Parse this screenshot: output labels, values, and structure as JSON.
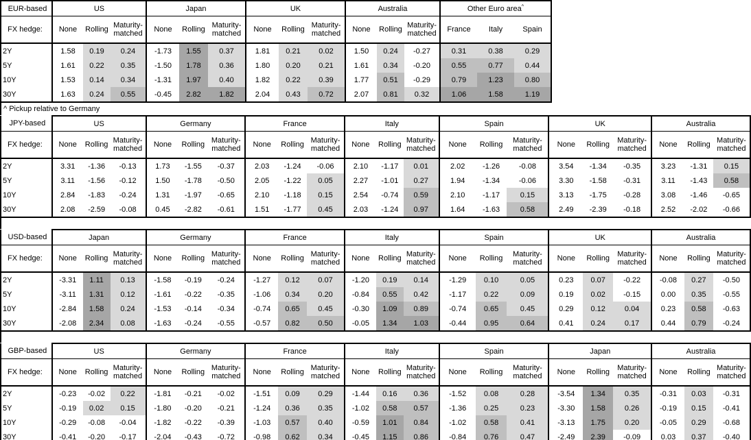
{
  "footnote": "^ Pickup relative to Germany",
  "colors": {
    "shade_light": "#d9d9d9",
    "shade_mid": "#bfbfbf",
    "shade_dark": "#a6a6a6",
    "unshaded": "#ffffff",
    "border": "#000000",
    "text": "#000000"
  },
  "tables": [
    {
      "id": "eur",
      "base_label": "EUR-based",
      "fx_hedge_label": "FX hedge:",
      "tenors": [
        "2Y",
        "5Y",
        "10Y",
        "30Y"
      ],
      "groups": [
        {
          "name": "US",
          "subcols": [
            "None",
            "Rolling",
            "Maturity-matched"
          ],
          "values": [
            [
              "1.58",
              "0.19",
              "0.24"
            ],
            [
              "1.61",
              "0.22",
              "0.35"
            ],
            [
              "1.53",
              "0.14",
              "0.34"
            ],
            [
              "1.63",
              "0.24",
              "0.55"
            ]
          ]
        },
        {
          "name": "Japan",
          "subcols": [
            "None",
            "Rolling",
            "Maturity-matched"
          ],
          "values": [
            [
              "-1.73",
              "1.55",
              "0.37"
            ],
            [
              "-1.50",
              "1.78",
              "0.36"
            ],
            [
              "-1.31",
              "1.97",
              "0.40"
            ],
            [
              "-0.45",
              "2.82",
              "1.82"
            ]
          ]
        },
        {
          "name": "UK",
          "subcols": [
            "None",
            "Rolling",
            "Maturity-matched"
          ],
          "values": [
            [
              "1.81",
              "0.21",
              "0.02"
            ],
            [
              "1.80",
              "0.20",
              "0.21"
            ],
            [
              "1.82",
              "0.22",
              "0.39"
            ],
            [
              "2.04",
              "0.43",
              "0.72"
            ]
          ]
        },
        {
          "name": "Australia",
          "subcols": [
            "None",
            "Rolling",
            "Maturity-matched"
          ],
          "values": [
            [
              "1.50",
              "0.24",
              "-0.27"
            ],
            [
              "1.61",
              "0.34",
              "-0.20"
            ],
            [
              "1.77",
              "0.51",
              "-0.29"
            ],
            [
              "2.07",
              "0.81",
              "0.32"
            ]
          ]
        },
        {
          "name": "Other Euro area",
          "sup": "^",
          "subcols": [
            "France",
            "Italy",
            "Spain"
          ],
          "values": [
            [
              "0.31",
              "0.38",
              "0.29"
            ],
            [
              "0.55",
              "0.77",
              "0.44"
            ],
            [
              "0.79",
              "1.23",
              "0.80"
            ],
            [
              "1.06",
              "1.58",
              "1.19"
            ]
          ]
        }
      ]
    },
    {
      "id": "jpy",
      "base_label": "JPY-based",
      "fx_hedge_label": "FX hedge:",
      "tenors": [
        "2Y",
        "5Y",
        "10Y",
        "30Y"
      ],
      "groups": [
        {
          "name": "US",
          "subcols": [
            "None",
            "Rolling",
            "Maturity-matched"
          ],
          "values": [
            [
              "3.31",
              "-1.36",
              "-0.13"
            ],
            [
              "3.11",
              "-1.56",
              "-0.12"
            ],
            [
              "2.84",
              "-1.83",
              "-0.24"
            ],
            [
              "2.08",
              "-2.59",
              "-0.08"
            ]
          ]
        },
        {
          "name": "Germany",
          "subcols": [
            "None",
            "Rolling",
            "Maturity-matched"
          ],
          "values": [
            [
              "1.73",
              "-1.55",
              "-0.37"
            ],
            [
              "1.50",
              "-1.78",
              "-0.50"
            ],
            [
              "1.31",
              "-1.97",
              "-0.65"
            ],
            [
              "0.45",
              "-2.82",
              "-0.61"
            ]
          ]
        },
        {
          "name": "France",
          "subcols": [
            "None",
            "Rolling",
            "Maturity-matched"
          ],
          "values": [
            [
              "2.03",
              "-1.24",
              "-0.06"
            ],
            [
              "2.05",
              "-1.22",
              "0.05"
            ],
            [
              "2.10",
              "-1.18",
              "0.15"
            ],
            [
              "1.51",
              "-1.77",
              "0.45"
            ]
          ]
        },
        {
          "name": "Italy",
          "subcols": [
            "None",
            "Rolling",
            "Maturity-matched"
          ],
          "values": [
            [
              "2.10",
              "-1.17",
              "0.01"
            ],
            [
              "2.27",
              "-1.01",
              "0.27"
            ],
            [
              "2.54",
              "-0.74",
              "0.59"
            ],
            [
              "2.03",
              "-1.24",
              "0.97"
            ]
          ]
        },
        {
          "name": "Spain",
          "subcols": [
            "None",
            "Rolling",
            "Maturity-matched"
          ],
          "values": [
            [
              "2.02",
              "-1.26",
              "-0.08"
            ],
            [
              "1.94",
              "-1.34",
              "-0.06"
            ],
            [
              "2.10",
              "-1.17",
              "0.15"
            ],
            [
              "1.64",
              "-1.63",
              "0.58"
            ]
          ]
        },
        {
          "name": "UK",
          "subcols": [
            "None",
            "Rolling",
            "Maturity-matched"
          ],
          "values": [
            [
              "3.54",
              "-1.34",
              "-0.35"
            ],
            [
              "3.30",
              "-1.58",
              "-0.31"
            ],
            [
              "3.13",
              "-1.75",
              "-0.28"
            ],
            [
              "2.49",
              "-2.39",
              "-0.18"
            ]
          ]
        },
        {
          "name": "Australia",
          "subcols": [
            "None",
            "Rolling",
            "Maturity-matched"
          ],
          "values": [
            [
              "3.23",
              "-1.31",
              "0.15"
            ],
            [
              "3.11",
              "-1.43",
              "0.58"
            ],
            [
              "3.08",
              "-1.46",
              "-0.65"
            ],
            [
              "2.52",
              "-2.02",
              "-0.66"
            ]
          ]
        }
      ]
    },
    {
      "id": "usd",
      "base_label": "USD-based",
      "fx_hedge_label": "FX hedge:",
      "tenors": [
        "2Y",
        "5Y",
        "10Y",
        "30Y"
      ],
      "groups": [
        {
          "name": "Japan",
          "subcols": [
            "None",
            "Rolling",
            "Maturity-matched"
          ],
          "values": [
            [
              "-3.31",
              "1.11",
              "0.13"
            ],
            [
              "-3.11",
              "1.31",
              "0.12"
            ],
            [
              "-2.84",
              "1.58",
              "0.24"
            ],
            [
              "-2.08",
              "2.34",
              "0.08"
            ]
          ]
        },
        {
          "name": "Germany",
          "subcols": [
            "None",
            "Rolling",
            "Maturity-matched"
          ],
          "values": [
            [
              "-1.58",
              "-0.19",
              "-0.24"
            ],
            [
              "-1.61",
              "-0.22",
              "-0.35"
            ],
            [
              "-1.53",
              "-0.14",
              "-0.34"
            ],
            [
              "-1.63",
              "-0.24",
              "-0.55"
            ]
          ]
        },
        {
          "name": "France",
          "subcols": [
            "None",
            "Rolling",
            "Maturity-matched"
          ],
          "values": [
            [
              "-1.27",
              "0.12",
              "0.07"
            ],
            [
              "-1.06",
              "0.34",
              "0.20"
            ],
            [
              "-0.74",
              "0.65",
              "0.45"
            ],
            [
              "-0.57",
              "0.82",
              "0.50"
            ]
          ]
        },
        {
          "name": "Italy",
          "subcols": [
            "None",
            "Rolling",
            "Maturity-matched"
          ],
          "values": [
            [
              "-1.20",
              "0.19",
              "0.14"
            ],
            [
              "-0.84",
              "0.55",
              "0.42"
            ],
            [
              "-0.30",
              "1.09",
              "0.89"
            ],
            [
              "-0.05",
              "1.34",
              "1.03"
            ]
          ]
        },
        {
          "name": "Spain",
          "subcols": [
            "None",
            "Rolling",
            "Maturity-matched"
          ],
          "values": [
            [
              "-1.29",
              "0.10",
              "0.05"
            ],
            [
              "-1.17",
              "0.22",
              "0.09"
            ],
            [
              "-0.74",
              "0.65",
              "0.45"
            ],
            [
              "-0.44",
              "0.95",
              "0.64"
            ]
          ]
        },
        {
          "name": "UK",
          "subcols": [
            "None",
            "Rolling",
            "Maturity-matched"
          ],
          "values": [
            [
              "0.23",
              "0.07",
              "-0.22"
            ],
            [
              "0.19",
              "0.02",
              "-0.15"
            ],
            [
              "0.29",
              "0.12",
              "0.04"
            ],
            [
              "0.41",
              "0.24",
              "0.17"
            ]
          ]
        },
        {
          "name": "Australia",
          "subcols": [
            "None",
            "Rolling",
            "Maturity-matched"
          ],
          "values": [
            [
              "-0.08",
              "0.27",
              "-0.50"
            ],
            [
              "0.00",
              "0.35",
              "-0.55"
            ],
            [
              "0.23",
              "0.58",
              "-0.63"
            ],
            [
              "0.44",
              "0.79",
              "-0.24"
            ]
          ]
        }
      ]
    },
    {
      "id": "gbp",
      "base_label": "GBP-based",
      "fx_hedge_label": "FX hedge:",
      "tenors": [
        "2Y",
        "5Y",
        "10Y",
        "30Y"
      ],
      "groups": [
        {
          "name": "US",
          "subcols": [
            "None",
            "Rolling",
            "Maturity-matched"
          ],
          "values": [
            [
              "-0.23",
              "-0.02",
              "0.22"
            ],
            [
              "-0.19",
              "0.02",
              "0.15"
            ],
            [
              "-0.29",
              "-0.08",
              "-0.04"
            ],
            [
              "-0.41",
              "-0.20",
              "-0.17"
            ]
          ]
        },
        {
          "name": "Germany",
          "subcols": [
            "None",
            "Rolling",
            "Maturity-matched"
          ],
          "values": [
            [
              "-1.81",
              "-0.21",
              "-0.02"
            ],
            [
              "-1.80",
              "-0.20",
              "-0.21"
            ],
            [
              "-1.82",
              "-0.22",
              "-0.39"
            ],
            [
              "-2.04",
              "-0.43",
              "-0.72"
            ]
          ]
        },
        {
          "name": "France",
          "subcols": [
            "None",
            "Rolling",
            "Maturity-matched"
          ],
          "values": [
            [
              "-1.51",
              "0.09",
              "0.29"
            ],
            [
              "-1.24",
              "0.36",
              "0.35"
            ],
            [
              "-1.03",
              "0.57",
              "0.40"
            ],
            [
              "-0.98",
              "0.62",
              "0.34"
            ]
          ]
        },
        {
          "name": "Italy",
          "subcols": [
            "None",
            "Rolling",
            "Maturity-matched"
          ],
          "values": [
            [
              "-1.44",
              "0.16",
              "0.36"
            ],
            [
              "-1.02",
              "0.58",
              "0.57"
            ],
            [
              "-0.59",
              "1.01",
              "0.84"
            ],
            [
              "-0.45",
              "1.15",
              "0.86"
            ]
          ]
        },
        {
          "name": "Spain",
          "subcols": [
            "None",
            "Rolling",
            "Maturity-matched"
          ],
          "values": [
            [
              "-1.52",
              "0.08",
              "0.28"
            ],
            [
              "-1.36",
              "0.25",
              "0.23"
            ],
            [
              "-1.02",
              "0.58",
              "0.41"
            ],
            [
              "-0.84",
              "0.76",
              "0.47"
            ]
          ]
        },
        {
          "name": "Japan",
          "subcols": [
            "None",
            "Rolling",
            "Maturity-matched"
          ],
          "values": [
            [
              "-3.54",
              "1.34",
              "0.35"
            ],
            [
              "-3.30",
              "1.58",
              "0.26"
            ],
            [
              "-3.13",
              "1.75",
              "0.20"
            ],
            [
              "-2.49",
              "2.39",
              "-0.09"
            ]
          ]
        },
        {
          "name": "Australia",
          "subcols": [
            "None",
            "Rolling",
            "Maturity-matched"
          ],
          "values": [
            [
              "-0.31",
              "0.03",
              "-0.31"
            ],
            [
              "-0.19",
              "0.15",
              "-0.41"
            ],
            [
              "-0.05",
              "0.29",
              "-0.68"
            ],
            [
              "0.03",
              "0.37",
              "-0.40"
            ]
          ]
        }
      ]
    }
  ]
}
